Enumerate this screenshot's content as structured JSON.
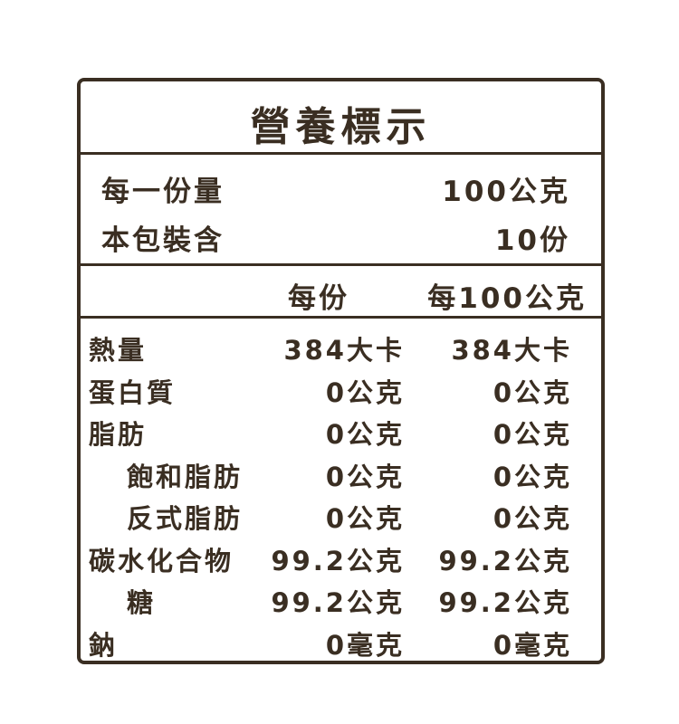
{
  "title": "營養標示",
  "serving": {
    "label": "每一份量",
    "value": "100公克"
  },
  "package": {
    "label": "本包裝含",
    "value": "10份"
  },
  "columns": {
    "per_serving": "每份",
    "per_100g": "每100公克"
  },
  "rows": [
    {
      "label": "熱量",
      "indent": false,
      "per_serving": "384大卡",
      "per_100g": "384大卡"
    },
    {
      "label": "蛋白質",
      "indent": false,
      "per_serving": "0公克",
      "per_100g": "0公克"
    },
    {
      "label": "脂肪",
      "indent": false,
      "per_serving": "0公克",
      "per_100g": "0公克"
    },
    {
      "label": "飽和脂肪",
      "indent": true,
      "per_serving": "0公克",
      "per_100g": "0公克"
    },
    {
      "label": "反式脂肪",
      "indent": true,
      "per_serving": "0公克",
      "per_100g": "0公克"
    },
    {
      "label": "碳水化合物",
      "indent": false,
      "per_serving": "99.2公克",
      "per_100g": "99.2公克"
    },
    {
      "label": "糖",
      "indent": true,
      "per_serving": "99.2公克",
      "per_100g": "99.2公克"
    },
    {
      "label": "鈉",
      "indent": false,
      "per_serving": "0毫克",
      "per_100g": "0毫克"
    }
  ],
  "colors": {
    "ink": "#3a2e22",
    "background": "#ffffff"
  }
}
